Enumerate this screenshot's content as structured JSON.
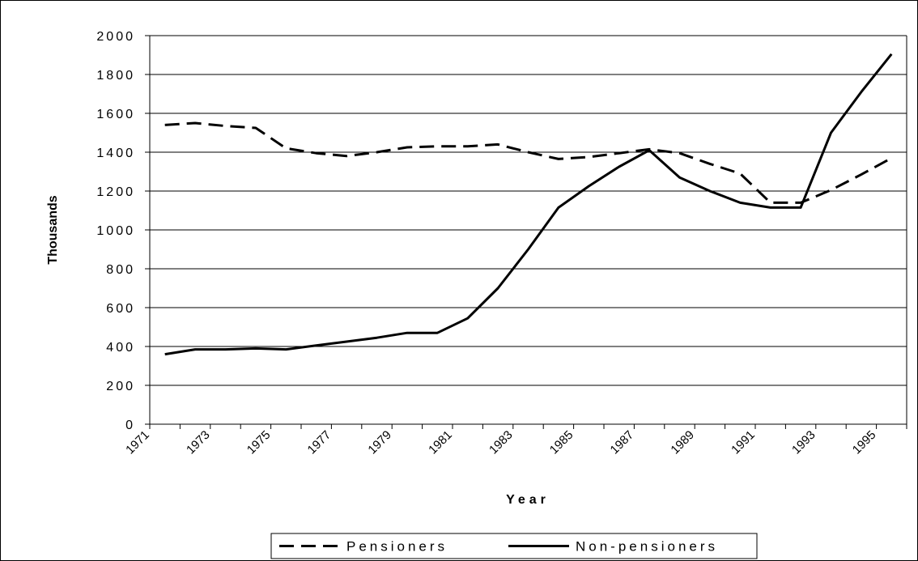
{
  "chart_data": {
    "type": "line",
    "xlabel": "Year",
    "ylabel": "Thousands",
    "categories": [
      "1971",
      null,
      "1973",
      null,
      "1975",
      null,
      "1977",
      null,
      "1979",
      null,
      "1981",
      null,
      "1983",
      null,
      "1985",
      null,
      "1987",
      null,
      "1989",
      null,
      "1991",
      null,
      "1993",
      null,
      "1995"
    ],
    "series": [
      {
        "name": "Pensioners",
        "color": "#000000",
        "line_style": "dashed",
        "values": [
          1540,
          1550,
          1535,
          1525,
          1420,
          1395,
          1380,
          1400,
          1425,
          1430,
          1430,
          1440,
          1400,
          1365,
          1375,
          1395,
          1415,
          1395,
          1340,
          1290,
          1140,
          1140,
          1205,
          1285,
          1370
        ]
      },
      {
        "name": "Non-pensioners",
        "color": "#000000",
        "line_style": "solid",
        "values": [
          360,
          385,
          385,
          390,
          385,
          405,
          425,
          445,
          470,
          470,
          545,
          700,
          900,
          1115,
          1225,
          1325,
          1410,
          1270,
          1200,
          1140,
          1115,
          1115,
          1500,
          1710,
          1905
        ]
      }
    ],
    "ylim": [
      0,
      2000
    ],
    "yticks": [
      0,
      200,
      400,
      600,
      800,
      1000,
      1200,
      1400,
      1600,
      1800,
      2000
    ],
    "grid": true,
    "legend": "bottom"
  }
}
